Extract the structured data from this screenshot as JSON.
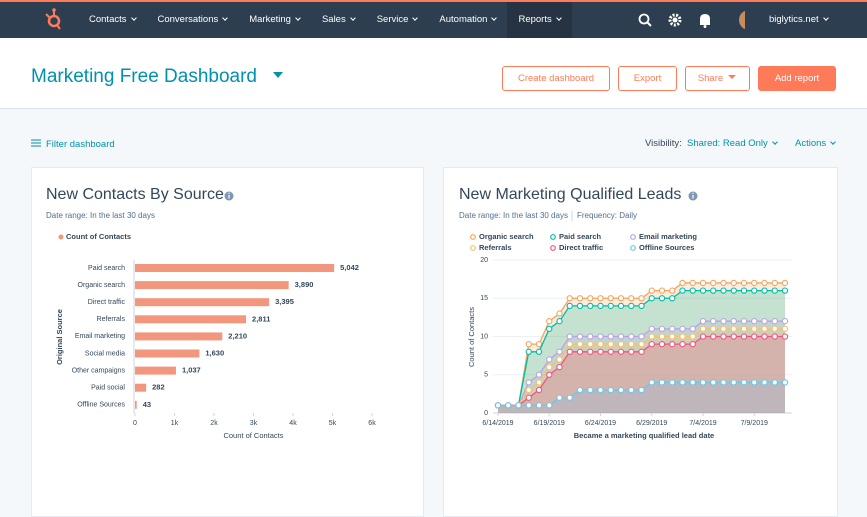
{
  "nav": {
    "items": [
      "Contacts",
      "Conversations",
      "Marketing",
      "Sales",
      "Service",
      "Automation",
      "Reports"
    ],
    "active_index": 6,
    "account": "biglytics.net"
  },
  "header": {
    "title": "Marketing Free Dashboard",
    "buttons": [
      "Create dashboard",
      "Export",
      "Share",
      "Add report"
    ]
  },
  "toolbar": {
    "filter": "Filter dashboard",
    "visibility_label": "Visibility:",
    "visibility": "Shared: Read Only",
    "actions": "Actions"
  },
  "chart_data": [
    {
      "type": "bar",
      "orientation": "horizontal",
      "title": "New Contacts By Source",
      "subtitle": "Date range: In the last 30 days",
      "series_name": "Count of Contacts",
      "color": "#f2977e",
      "categories": [
        "Paid search",
        "Organic search",
        "Direct traffic",
        "Referrals",
        "Email marketing",
        "Social media",
        "Other campaigns",
        "Paid social",
        "Offline Sources"
      ],
      "values": [
        5042,
        3890,
        3395,
        2811,
        2210,
        1630,
        1037,
        282,
        43
      ],
      "value_labels": [
        "5,042",
        "3,890",
        "3,395",
        "2,811",
        "2,210",
        "1,630",
        "1,037",
        "282",
        "43"
      ],
      "xlim": [
        0,
        6000
      ],
      "xticks": [
        0,
        {
          "value": 1000,
          "label": "1k"
        },
        {
          "value": 2000,
          "label": "2k"
        },
        {
          "value": 3000,
          "label": "3k"
        },
        {
          "value": 4000,
          "label": "4k"
        },
        {
          "value": 5000,
          "label": "5k"
        },
        {
          "value": 6000,
          "label": "6k"
        }
      ],
      "xlabel": "Count of Contacts",
      "ylabel": "Original Source"
    },
    {
      "type": "line",
      "area": true,
      "title": "New Marketing Qualified Leads",
      "subtitle": "Date range: In the last 30 days",
      "frequency": "Frequency: Daily",
      "x": [
        "6/14/2019",
        "6/15/2019",
        "6/16/2019",
        "6/17/2019",
        "6/18/2019",
        "6/19/2019",
        "6/20/2019",
        "6/21/2019",
        "6/22/2019",
        "6/23/2019",
        "6/24/2019",
        "6/25/2019",
        "6/26/2019",
        "6/27/2019",
        "6/28/2019",
        "6/29/2019",
        "6/30/2019",
        "7/1/2019",
        "7/2/2019",
        "7/3/2019",
        "7/4/2019",
        "7/5/2019",
        "7/6/2019",
        "7/7/2019",
        "7/8/2019",
        "7/9/2019",
        "7/10/2019",
        "7/11/2019",
        "7/12/2019"
      ],
      "xticks": [
        "6/14/2019",
        "6/19/2019",
        "6/24/2019",
        "6/29/2019",
        "7/4/2019",
        "7/9/2019"
      ],
      "ylim": [
        0,
        20
      ],
      "yticks": [
        0,
        5,
        10,
        15,
        20
      ],
      "grid": true,
      "series": [
        {
          "name": "Organic search",
          "color": "#f5a35c",
          "values": [
            1,
            1,
            1,
            9,
            9,
            12,
            13,
            15,
            15,
            15,
            15,
            15,
            15,
            15,
            15,
            16,
            16,
            16,
            17,
            17,
            17,
            17,
            17,
            17,
            17,
            17,
            17,
            17,
            17
          ]
        },
        {
          "name": "Paid search",
          "color": "#00bda5",
          "values": [
            1,
            1,
            1,
            8,
            8,
            11,
            12,
            14,
            14,
            14,
            14,
            14,
            14,
            14,
            14,
            15,
            15,
            15,
            16,
            16,
            16,
            16,
            16,
            16,
            16,
            16,
            16,
            16,
            16
          ]
        },
        {
          "name": "Email marketing",
          "color": "#b9a3e3",
          "values": [
            1,
            1,
            1,
            4,
            5,
            7,
            8,
            10,
            10,
            10,
            10,
            10,
            10,
            10,
            10,
            11,
            11,
            11,
            11,
            11,
            12,
            12,
            12,
            12,
            12,
            12,
            12,
            12,
            12
          ]
        },
        {
          "name": "Referrals",
          "color": "#f5c26b",
          "values": [
            1,
            1,
            1,
            3,
            4,
            6,
            7,
            9,
            9,
            9,
            9,
            9,
            9,
            9,
            9,
            10,
            10,
            10,
            10,
            10,
            11,
            11,
            11,
            11,
            11,
            11,
            11,
            11,
            11
          ]
        },
        {
          "name": "Direct traffic",
          "color": "#f2547d",
          "values": [
            1,
            1,
            1,
            2,
            3,
            5,
            6,
            8,
            8,
            8,
            8,
            8,
            8,
            8,
            8,
            9,
            9,
            9,
            9,
            9,
            10,
            10,
            10,
            10,
            10,
            10,
            10,
            10,
            10
          ]
        },
        {
          "name": "Offline Sources",
          "color": "#6ec6e8",
          "values": [
            1,
            1,
            1,
            1,
            1,
            1,
            2,
            2,
            3,
            3,
            3,
            3,
            3,
            3,
            3,
            4,
            4,
            4,
            4,
            4,
            4,
            4,
            4,
            4,
            4,
            4,
            4,
            4,
            4
          ]
        }
      ],
      "xlabel": "Became a marketing qualified lead date",
      "ylabel": "Count of Contacts"
    }
  ]
}
